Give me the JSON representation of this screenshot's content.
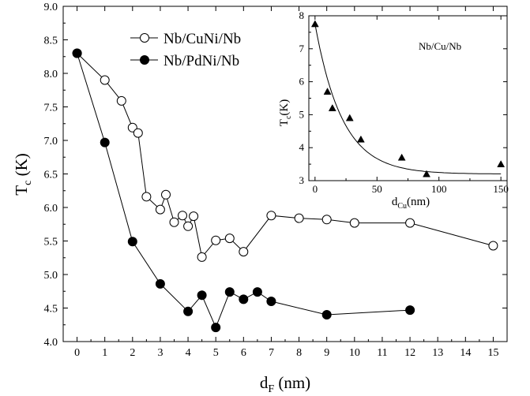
{
  "chart_data": [
    {
      "type": "line",
      "title": "",
      "xlabel": {
        "main": "d",
        "sub": "F",
        "rest": " (nm)"
      },
      "ylabel": {
        "main": "T",
        "sub": "c",
        "rest": " (K)"
      },
      "xlim": [
        -0.5,
        15.5
      ],
      "ylim": [
        4.0,
        9.0
      ],
      "xticks": [
        0,
        1,
        2,
        3,
        4,
        5,
        6,
        7,
        8,
        9,
        10,
        11,
        12,
        13,
        14,
        15
      ],
      "yticks": [
        "4.0",
        "4.5",
        "5.0",
        "5.5",
        "6.0",
        "6.5",
        "7.0",
        "7.5",
        "8.0",
        "8.5",
        "9.0"
      ],
      "grid": false,
      "legend": "top-left",
      "series": [
        {
          "name": "Nb/CuNi/Nb",
          "marker": "open-circle",
          "x": [
            0,
            1,
            1.6,
            2,
            2.2,
            2.5,
            3,
            3.2,
            3.5,
            3.8,
            4,
            4.2,
            4.5,
            5,
            5.5,
            6,
            7,
            8,
            9,
            10,
            12,
            15
          ],
          "y": [
            8.3,
            7.9,
            7.59,
            7.19,
            7.11,
            6.16,
            5.97,
            6.19,
            5.78,
            5.88,
            5.72,
            5.87,
            5.26,
            5.51,
            5.54,
            5.34,
            5.88,
            5.84,
            5.82,
            5.77,
            5.77,
            5.43
          ]
        },
        {
          "name": "Nb/PdNi/Nb",
          "marker": "filled-circle",
          "x": [
            0,
            1,
            2,
            3,
            4,
            4.5,
            5,
            5.5,
            6,
            6.5,
            7,
            9,
            12
          ],
          "y": [
            8.3,
            6.97,
            5.49,
            4.86,
            4.45,
            4.69,
            4.21,
            4.74,
            4.63,
            4.74,
            4.6,
            4.4,
            4.47
          ]
        }
      ]
    },
    {
      "type": "scatter",
      "title": "",
      "annotation": "Nb/Cu/Nb",
      "xlabel": {
        "main": "d",
        "sub": "Cu",
        "rest": "(nm)"
      },
      "ylabel": {
        "main": "T",
        "sub": "c",
        "rest": "(K)"
      },
      "xlim": [
        -5,
        155
      ],
      "ylim": [
        3,
        8
      ],
      "xticks": [
        0,
        50,
        100,
        150
      ],
      "yticks": [
        3,
        4,
        5,
        6,
        7,
        8
      ],
      "grid": false,
      "series": [
        {
          "name": "",
          "marker": "filled-triangle",
          "x": [
            0,
            10,
            14,
            28,
            37,
            70,
            90,
            150
          ],
          "y": [
            7.75,
            5.7,
            5.2,
            4.9,
            4.25,
            3.7,
            3.2,
            3.5
          ]
        }
      ],
      "fit_curve": {
        "form": "a + b*exp(-x/c)",
        "a": 3.2,
        "b": 4.55,
        "c": 22
      }
    }
  ]
}
